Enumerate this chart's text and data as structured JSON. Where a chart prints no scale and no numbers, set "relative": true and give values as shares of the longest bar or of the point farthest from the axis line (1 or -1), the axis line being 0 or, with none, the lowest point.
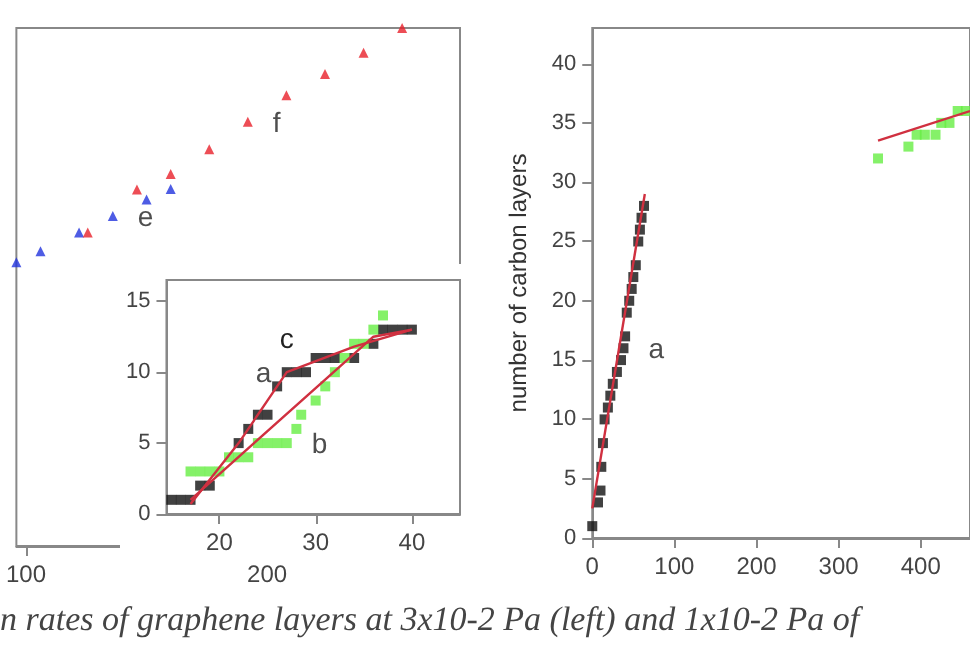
{
  "chart_data": [
    {
      "type": "scatter",
      "relative": true,
      "marker": "triangle",
      "xlim": [
        96,
        280
      ],
      "xticks": [
        100,
        200
      ],
      "annotations": [
        "n rates of graphene layers at 3x10-2 Pa (left) and 1x10-2 Pa of"
      ],
      "series": [
        {
          "name": "e",
          "color": "#2233dd",
          "x": [
            96,
            106,
            122,
            136,
            150,
            160
          ],
          "values": [
            0.548,
            0.569,
            0.605,
            0.637,
            0.669,
            0.689
          ]
        },
        {
          "name": "f",
          "color": "#e8202a",
          "x": [
            125.6,
            146,
            160,
            176,
            192,
            208,
            224,
            240,
            256
          ],
          "values": [
            0.605,
            0.688,
            0.718,
            0.766,
            0.819,
            0.87,
            0.911,
            0.952,
            1.0
          ]
        }
      ]
    },
    {
      "type": "scatter",
      "marker": "square",
      "xlim": [
        14.5,
        45
      ],
      "xticks": [
        20,
        30,
        40
      ],
      "ylim": [
        0,
        16.5
      ],
      "yticks": [
        0,
        5,
        10,
        15
      ],
      "series": [
        {
          "name": "a",
          "color": "#111111",
          "x": [
            15,
            16,
            17,
            18,
            19,
            22,
            23,
            24,
            25,
            26,
            27,
            28,
            29,
            30,
            31,
            32,
            34,
            36,
            37,
            38,
            39,
            40
          ],
          "values": [
            1,
            1,
            1,
            2,
            2,
            5,
            6,
            7,
            7,
            9,
            10,
            10,
            10,
            11,
            11,
            11,
            11,
            12,
            13,
            13,
            13,
            13
          ]
        },
        {
          "name": "b",
          "color": "#66ee44",
          "x": [
            17,
            18,
            19,
            20,
            21,
            22,
            23,
            24,
            25,
            26,
            27,
            28,
            28.5,
            30,
            31,
            32,
            33,
            34,
            35,
            36,
            37
          ],
          "values": [
            3,
            3,
            3,
            3,
            4,
            4,
            4,
            5,
            5,
            5,
            5,
            6,
            7,
            8,
            9,
            10,
            11,
            12,
            12,
            13,
            14
          ]
        },
        {
          "name": "c",
          "type": "line",
          "marker": "none",
          "color": "#d03040",
          "x": [
            17,
            22,
            27,
            34,
            40
          ],
          "values": [
            0.7,
            5,
            10,
            11.8,
            13
          ]
        },
        {
          "type": "line",
          "marker": "none",
          "color": "#d03040",
          "x": [
            17,
            36,
            40
          ],
          "values": [
            1,
            12.5,
            13
          ]
        }
      ]
    },
    {
      "type": "scatter",
      "marker": "square",
      "xlim": [
        0,
        460
      ],
      "xticks": [
        0,
        100,
        200,
        300,
        400
      ],
      "ylim": [
        0,
        43
      ],
      "yticks": [
        0,
        5,
        10,
        15,
        20,
        25,
        30,
        35,
        40
      ],
      "ylabel": "number of carbon layers",
      "series": [
        {
          "name": "a",
          "color": "#111111",
          "x": [
            0,
            7,
            10,
            11,
            13,
            15,
            19,
            22,
            25,
            30,
            35,
            38,
            40,
            42,
            45,
            48,
            50,
            53,
            56,
            58,
            60,
            63
          ],
          "values": [
            1,
            3,
            4,
            6,
            8,
            10,
            11,
            12,
            13,
            14,
            15,
            16,
            17,
            19,
            20,
            21,
            22,
            23,
            25,
            26,
            27,
            28
          ]
        },
        {
          "color": "#66ee44",
          "x": [
            348,
            385,
            395,
            405,
            418,
            425,
            435,
            445,
            455
          ],
          "values": [
            32,
            33,
            34,
            34,
            34,
            35,
            35,
            36,
            36
          ]
        },
        {
          "type": "line",
          "marker": "none",
          "color": "#d03040",
          "x": [
            0,
            64
          ],
          "values": [
            2.5,
            29
          ]
        },
        {
          "type": "line",
          "marker": "none",
          "color": "#d03040",
          "x": [
            348,
            460
          ],
          "values": [
            33.5,
            36
          ]
        }
      ]
    }
  ]
}
